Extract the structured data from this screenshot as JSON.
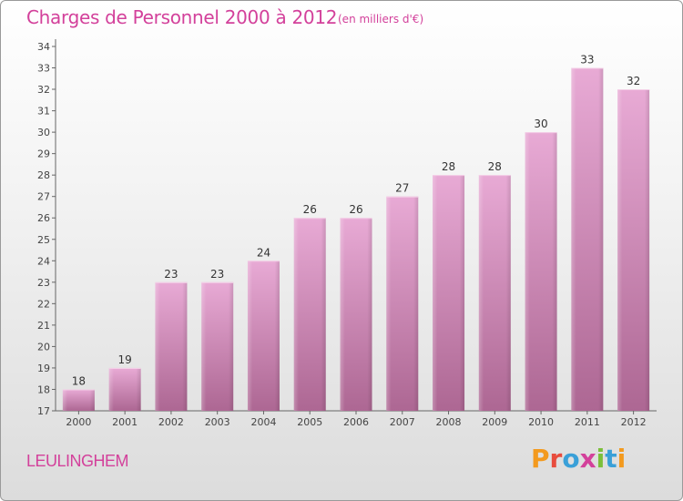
{
  "header": {
    "title": "Charges de Personnel 2000 à 2012",
    "subtitle": "(en milliers d'€)"
  },
  "footer": {
    "commune": "LEULINGHEM",
    "brand": "Proxiti"
  },
  "colors": {
    "title": "#d3419b",
    "bar_top": "#e6a8d3",
    "bar_bottom": "#b06a97",
    "brand_letters": [
      "#f39a1e",
      "#e84c3d",
      "#3aa0d8",
      "#d3419b",
      "#7bbf3a",
      "#3aa0d8",
      "#f39a1e"
    ]
  },
  "chart_data": {
    "type": "bar",
    "categories": [
      "2000",
      "2001",
      "2002",
      "2003",
      "2004",
      "2005",
      "2006",
      "2007",
      "2008",
      "2009",
      "2010",
      "2011",
      "2012"
    ],
    "values": [
      18,
      19,
      23,
      23,
      24,
      26,
      26,
      27,
      28,
      28,
      30,
      33,
      32
    ],
    "title": "Charges de Personnel 2000 à 2012",
    "ylim": [
      17,
      34
    ],
    "yticks": [
      17,
      18,
      19,
      20,
      21,
      22,
      23,
      24,
      25,
      26,
      27,
      28,
      29,
      30,
      31,
      32,
      33,
      34
    ],
    "grid": false,
    "data_labels": true
  }
}
